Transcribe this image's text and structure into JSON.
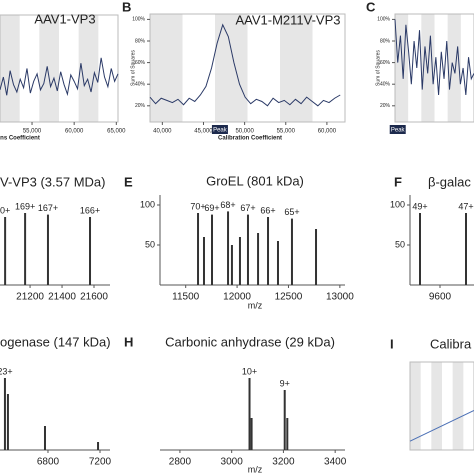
{
  "panels": [
    "B",
    "C",
    "E",
    "F",
    "H",
    "I"
  ],
  "chart_data": [
    {
      "type": "line",
      "title": "AAV1-VP3",
      "xlabel": "ns Coefficient",
      "color": "#2b3a67",
      "x": [
        51200,
        51600,
        52000,
        52400,
        52800,
        53200,
        53600,
        54000,
        54400,
        54800,
        55200,
        55600,
        56000,
        56400,
        56800,
        57200,
        57600,
        58000,
        58400,
        58800,
        59200,
        59600,
        60000,
        60400,
        60800,
        61200,
        61600,
        62000,
        62400,
        62800,
        63200,
        63600,
        64000,
        64400,
        64800,
        65200
      ],
      "values": [
        30,
        42,
        25,
        48,
        35,
        28,
        40,
        32,
        50,
        27,
        38,
        45,
        30,
        36,
        52,
        33,
        41,
        29,
        47,
        35,
        26,
        44,
        38,
        31,
        55,
        34,
        40,
        28,
        46,
        37,
        60,
        42,
        33,
        50,
        38,
        45
      ],
      "xlim": [
        51200,
        65200
      ],
      "ylim": [
        0,
        100
      ],
      "xticks": [
        {
          "value": 55000,
          "label": "55,000"
        },
        {
          "value": 60000,
          "label": "60,000"
        },
        {
          "value": 65000,
          "label": "65,000"
        }
      ]
    },
    {
      "type": "line",
      "title": "AAV1-M211V-VP3",
      "ylabel": "Sum of Squares",
      "xlabel": "Calibration Coefficient",
      "color": "#2b3a67",
      "x": [
        38500,
        39180,
        39860,
        40540,
        41220,
        41900,
        42580,
        43260,
        43940,
        44620,
        45300,
        45980,
        46660,
        47340,
        48020,
        48700,
        49380,
        50060,
        50740,
        51420,
        52100,
        52780,
        53460,
        54140,
        54820,
        55500,
        56180,
        56860,
        57540,
        58220,
        58900,
        59580,
        60260,
        60940,
        61620
      ],
      "values": [
        28,
        22,
        27,
        25,
        23,
        26,
        21,
        27,
        24,
        30,
        38,
        55,
        78,
        95,
        84,
        60,
        40,
        28,
        22,
        26,
        24,
        20,
        27,
        23,
        25,
        21,
        26,
        22,
        28,
        24,
        20,
        25,
        23,
        27,
        30
      ],
      "xlim": [
        38500,
        62200
      ],
      "ylim": [
        5,
        105
      ],
      "xticks": [
        {
          "value": 40000,
          "label": "40,000"
        },
        {
          "value": 45000,
          "label": "45,000"
        },
        {
          "value": 50000,
          "label": "50,000"
        },
        {
          "value": 55000,
          "label": "55,000"
        },
        {
          "value": 60000,
          "label": "60,000"
        }
      ],
      "yticks": [
        {
          "value": 20,
          "label": "20%"
        },
        {
          "value": 40,
          "label": "40%"
        },
        {
          "value": 60,
          "label": "60%"
        },
        {
          "value": 80,
          "label": "80%"
        },
        {
          "value": 100,
          "label": "100%"
        }
      ],
      "annotations": [
        {
          "text": "Peak",
          "x": 47000
        }
      ]
    },
    {
      "type": "line",
      "ylabel": "Sum of Squares",
      "color": "#2b3a67",
      "x": [
        0,
        1,
        2,
        3,
        4,
        5,
        6,
        7,
        8,
        9,
        10,
        11,
        12,
        13,
        14,
        15,
        16,
        17,
        18,
        19,
        20,
        21,
        22,
        23,
        24,
        25,
        26,
        27,
        28,
        29
      ],
      "values": [
        100,
        60,
        85,
        45,
        95,
        70,
        40,
        80,
        55,
        90,
        35,
        75,
        50,
        85,
        40,
        65,
        30,
        70,
        45,
        80,
        35,
        60,
        50,
        75,
        40,
        55,
        30,
        65,
        45,
        50
      ],
      "xlim": [
        0,
        29
      ],
      "ylim": [
        5,
        105
      ],
      "yticks": [
        {
          "value": 20,
          "label": "20%"
        },
        {
          "value": 40,
          "label": "40%"
        },
        {
          "value": 60,
          "label": "60%"
        },
        {
          "value": 80,
          "label": "80%"
        },
        {
          "value": 100,
          "label": "100%"
        }
      ],
      "annotations": [
        {
          "text": "Peak",
          "x": 1
        }
      ]
    },
    {
      "type": "stem",
      "title": "V-VP3 (3.57 MDa)",
      "color": "#333333",
      "x": [
        21044,
        21169,
        21312,
        21575
      ],
      "values": [
        85,
        90,
        88,
        85
      ],
      "labels": [
        "0+",
        "169+",
        "167+",
        "166+"
      ],
      "xlim": [
        21012,
        21700
      ],
      "ylim": [
        0,
        112.5
      ],
      "xticks": [
        21200,
        21400,
        21600
      ]
    },
    {
      "type": "stem",
      "title": "GroEL (801 kDa)",
      "xlabel": "m/z",
      "color": "#333333",
      "x": [
        11620,
        11678,
        11756,
        11912,
        11950,
        12028,
        12106,
        12204,
        12301,
        12398,
        12534,
        12768
      ],
      "values": [
        90,
        60,
        88,
        92,
        50,
        60,
        88,
        65,
        85,
        55,
        83,
        70
      ],
      "labels": [
        "70+",
        null,
        "69+",
        "68+",
        null,
        null,
        "67+",
        null,
        "66+",
        null,
        "65+",
        null
      ],
      "xlim": [
        11250,
        13050
      ],
      "ylim": [
        0,
        112.5
      ],
      "xticks": [
        11500,
        12000,
        12500,
        13000
      ],
      "yticks": [
        50,
        100
      ]
    },
    {
      "type": "stem",
      "title": "β-galac",
      "color": "#333333",
      "x": [
        9500,
        9730
      ],
      "values": [
        90,
        90
      ],
      "labels": [
        "49+",
        "47+"
      ],
      "xlim": [
        9450,
        9770
      ],
      "ylim": [
        0,
        112.5
      ],
      "xticks": [
        9600
      ],
      "yticks": [
        50,
        100
      ]
    },
    {
      "type": "stem",
      "title": "ogenase (147 kDa)",
      "color": "#333333",
      "x": [
        6469,
        6492,
        6777,
        7185
      ],
      "values": [
        90,
        70,
        30,
        10
      ],
      "labels": [
        "23+",
        null,
        null,
        null
      ],
      "xlim": [
        6431,
        7277
      ],
      "ylim": [
        0,
        112.5
      ],
      "xticks": [
        6800,
        7200
      ]
    },
    {
      "type": "stem",
      "title": "Carbonic anhydrase (29 kDa)",
      "xlabel": "m/z",
      "color": "#333333",
      "x": [
        3069,
        3077,
        3205,
        3215
      ],
      "values": [
        90,
        40,
        75,
        40
      ],
      "labels": [
        "10+",
        null,
        "9+",
        null
      ],
      "xlim": [
        2723,
        3438
      ],
      "ylim": [
        0,
        112.5
      ],
      "xticks": [
        2800,
        3000,
        3200,
        3400
      ]
    },
    {
      "type": "line",
      "title": "Calibra",
      "color": "#4a6fb5",
      "x": [
        0,
        1
      ],
      "values": [
        10,
        45
      ],
      "xlim": [
        0,
        1
      ],
      "ylim": [
        0,
        100
      ]
    }
  ]
}
